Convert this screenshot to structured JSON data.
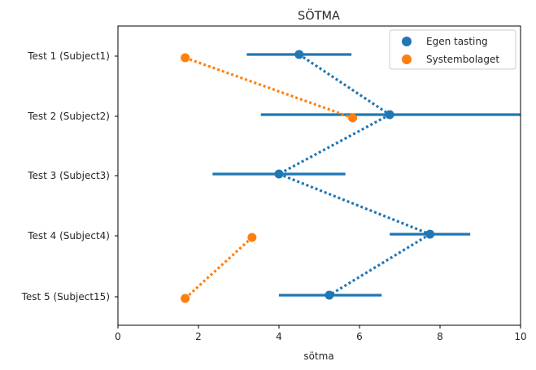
{
  "chart_data": {
    "type": "scatter",
    "title": "SÖTMA",
    "xlabel": "sötma",
    "ylabel": "",
    "xlim": [
      0,
      10
    ],
    "xticks": [
      0,
      2,
      4,
      6,
      8,
      10
    ],
    "categories": [
      "Test 1 (Subject1)",
      "Test 2 (Subject2)",
      "Test 3 (Subject3)",
      "Test 4 (Subject4)",
      "Test 5 (Subject15)"
    ],
    "legend_position": "upper right",
    "series": [
      {
        "name": "Egen tasting",
        "color": "#1f77b4",
        "values": [
          4.5,
          6.75,
          4.0,
          7.75,
          5.25
        ],
        "ci_low": [
          3.2,
          3.55,
          2.35,
          6.75,
          4.0
        ],
        "ci_high": [
          5.8,
          10.2,
          5.65,
          8.75,
          6.55
        ],
        "connect_dotted": true
      },
      {
        "name": "Systembolaget",
        "color": "#ff7f0e",
        "values": [
          1.67,
          5.83,
          null,
          3.33,
          1.67
        ],
        "connect_dotted": true
      }
    ]
  }
}
